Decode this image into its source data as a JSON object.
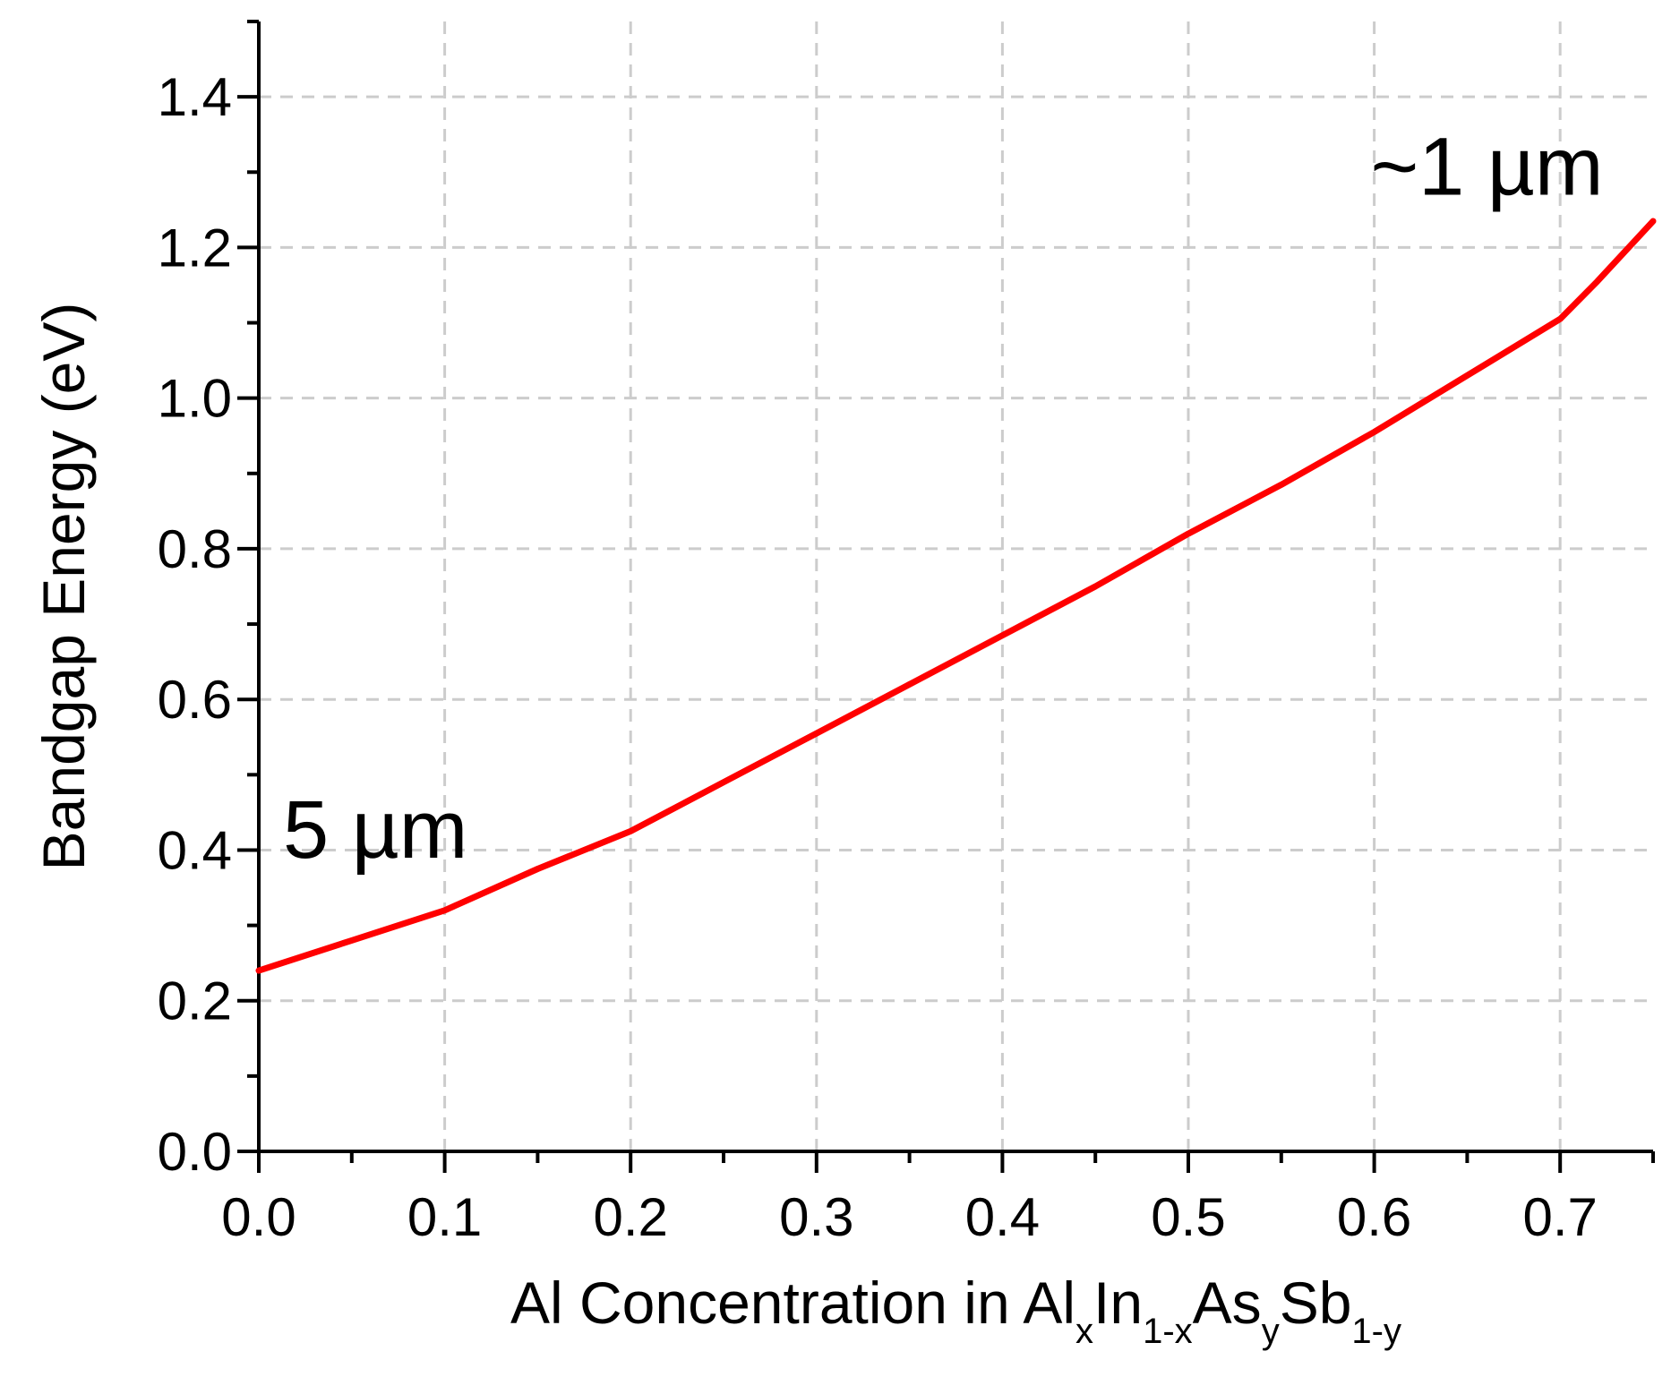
{
  "chart_data": {
    "type": "line",
    "title": "",
    "xlabel": {
      "parts": [
        {
          "text": "Al Concentration in Al",
          "sub": false
        },
        {
          "text": "x",
          "sub": true
        },
        {
          "text": "In",
          "sub": false
        },
        {
          "text": "1-x",
          "sub": true
        },
        {
          "text": "As",
          "sub": false
        },
        {
          "text": "y",
          "sub": true
        },
        {
          "text": "Sb",
          "sub": false
        },
        {
          "text": "1-y",
          "sub": true
        }
      ]
    },
    "ylabel": "Bandgap Energy (eV)",
    "xlim": [
      0,
      0.75
    ],
    "ylim": [
      0,
      1.5
    ],
    "x_ticks": [
      0.0,
      0.1,
      0.2,
      0.3,
      0.4,
      0.5,
      0.6,
      0.7
    ],
    "x_tick_labels": [
      "0.0",
      "0.1",
      "0.2",
      "0.3",
      "0.4",
      "0.5",
      "0.6",
      "0.7"
    ],
    "x_minor_step": 0.05,
    "y_ticks": [
      0.0,
      0.2,
      0.4,
      0.6,
      0.8,
      1.0,
      1.2,
      1.4
    ],
    "y_tick_labels": [
      "0.0",
      "0.2",
      "0.4",
      "0.6",
      "0.8",
      "1.0",
      "1.2",
      "1.4"
    ],
    "y_minor_step": 0.1,
    "grid": true,
    "series": [
      {
        "color": "#ff0000",
        "x": [
          0.0,
          0.05,
          0.1,
          0.15,
          0.2,
          0.25,
          0.3,
          0.35,
          0.4,
          0.45,
          0.5,
          0.55,
          0.6,
          0.65,
          0.7,
          0.72,
          0.75
        ],
        "y": [
          0.24,
          0.28,
          0.32,
          0.375,
          0.425,
          0.49,
          0.555,
          0.62,
          0.685,
          0.75,
          0.82,
          0.885,
          0.955,
          1.03,
          1.105,
          1.155,
          1.235
        ]
      }
    ],
    "annotations": [
      {
        "text": "5 µm",
        "x": 0.013,
        "y": 0.39
      },
      {
        "text": "~1 µm",
        "x": 0.598,
        "y": 1.27
      }
    ]
  }
}
